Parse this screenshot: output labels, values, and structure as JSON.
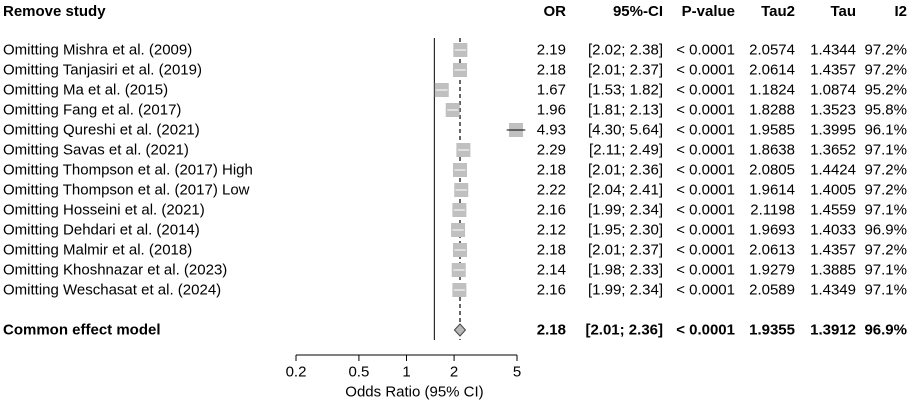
{
  "chart_data": {
    "type": "forest",
    "header": {
      "study": "Remove study",
      "or": "OR",
      "ci": "95%-CI",
      "p": "P-value",
      "tau2": "Tau2",
      "tau": "Tau",
      "i2": "I2"
    },
    "rows": [
      {
        "label": "Omitting Mishra et al. (2009)",
        "or": 2.19,
        "lo": 2.02,
        "hi": 2.38,
        "or_text": "2.19",
        "ci_text": "[2.02; 2.38]",
        "p": "< 0.0001",
        "tau2": "2.0574",
        "tau": "1.4344",
        "i2": "97.2%"
      },
      {
        "label": "Omitting Tanjasiri et al. (2019)",
        "or": 2.18,
        "lo": 2.01,
        "hi": 2.37,
        "or_text": "2.18",
        "ci_text": "[2.01; 2.37]",
        "p": "< 0.0001",
        "tau2": "2.0614",
        "tau": "1.4357",
        "i2": "97.2%"
      },
      {
        "label": "Omitting Ma et al. (2015)",
        "or": 1.67,
        "lo": 1.53,
        "hi": 1.82,
        "or_text": "1.67",
        "ci_text": "[1.53; 1.82]",
        "p": "< 0.0001",
        "tau2": "1.1824",
        "tau": "1.0874",
        "i2": "95.2%"
      },
      {
        "label": "Omitting Fang et al. (2017)",
        "or": 1.96,
        "lo": 1.81,
        "hi": 2.13,
        "or_text": "1.96",
        "ci_text": "[1.81; 2.13]",
        "p": "< 0.0001",
        "tau2": "1.8288",
        "tau": "1.3523",
        "i2": "95.8%"
      },
      {
        "label": "Omitting Qureshi et al. (2021)",
        "or": 4.93,
        "lo": 4.3,
        "hi": 5.64,
        "or_text": "4.93",
        "ci_text": "[4.30; 5.64]",
        "p": "< 0.0001",
        "tau2": "1.9585",
        "tau": "1.3995",
        "i2": "96.1%"
      },
      {
        "label": "Omitting Savas et al. (2021)",
        "or": 2.29,
        "lo": 2.11,
        "hi": 2.49,
        "or_text": "2.29",
        "ci_text": "[2.11; 2.49]",
        "p": "< 0.0001",
        "tau2": "1.8638",
        "tau": "1.3652",
        "i2": "97.1%"
      },
      {
        "label": "Omitting Thompson et al. (2017) High",
        "or": 2.18,
        "lo": 2.01,
        "hi": 2.36,
        "or_text": "2.18",
        "ci_text": "[2.01; 2.36]",
        "p": "< 0.0001",
        "tau2": "2.0805",
        "tau": "1.4424",
        "i2": "97.2%"
      },
      {
        "label": "Omitting Thompson et al. (2017) Low",
        "or": 2.22,
        "lo": 2.04,
        "hi": 2.41,
        "or_text": "2.22",
        "ci_text": "[2.04; 2.41]",
        "p": "< 0.0001",
        "tau2": "1.9614",
        "tau": "1.4005",
        "i2": "97.2%"
      },
      {
        "label": "Omitting Hosseini et al. (2021)",
        "or": 2.16,
        "lo": 1.99,
        "hi": 2.34,
        "or_text": "2.16",
        "ci_text": "[1.99; 2.34]",
        "p": "< 0.0001",
        "tau2": "2.1198",
        "tau": "1.4559",
        "i2": "97.1%"
      },
      {
        "label": "Omitting Dehdari et al. (2014)",
        "or": 2.12,
        "lo": 1.95,
        "hi": 2.3,
        "or_text": "2.12",
        "ci_text": "[1.95; 2.30]",
        "p": "< 0.0001",
        "tau2": "1.9693",
        "tau": "1.4033",
        "i2": "96.9%"
      },
      {
        "label": "Omitting Malmir et al. (2018)",
        "or": 2.18,
        "lo": 2.01,
        "hi": 2.37,
        "or_text": "2.18",
        "ci_text": "[2.01; 2.37]",
        "p": "< 0.0001",
        "tau2": "2.0613",
        "tau": "1.4357",
        "i2": "97.2%"
      },
      {
        "label": "Omitting Khoshnazar et al. (2023)",
        "or": 2.14,
        "lo": 1.98,
        "hi": 2.33,
        "or_text": "2.14",
        "ci_text": "[1.98; 2.33]",
        "p": "< 0.0001",
        "tau2": "1.9279",
        "tau": "1.3885",
        "i2": "97.1%"
      },
      {
        "label": "Omitting Weschasat et al. (2024)",
        "or": 2.16,
        "lo": 1.99,
        "hi": 2.34,
        "or_text": "2.16",
        "ci_text": "[1.99; 2.34]",
        "p": "< 0.0001",
        "tau2": "2.0589",
        "tau": "1.4349",
        "i2": "97.1%"
      }
    ],
    "pooled": {
      "label": "Common effect model",
      "or": 2.18,
      "lo": 2.01,
      "hi": 2.36,
      "or_text": "2.18",
      "ci_text": "[2.01; 2.36]",
      "p": "< 0.0001",
      "tau2": "1.9355",
      "tau": "1.3912",
      "i2": "96.9%"
    },
    "x_axis": {
      "scale": "log",
      "label": "Odds Ratio (95% CI)",
      "ticks": [
        0.2,
        0.5,
        1,
        2,
        5
      ],
      "tick_labels": [
        "0.2",
        "0.5",
        "1",
        "2",
        "5"
      ],
      "range": [
        0.2,
        5
      ]
    },
    "null_line": 1.5,
    "summary_line": 2.18,
    "colors": {
      "box": "#c0c0c0",
      "diamond": "#b8b8b8",
      "ci_line": "#000000",
      "ci_line_on_box": "#ffffff"
    }
  }
}
